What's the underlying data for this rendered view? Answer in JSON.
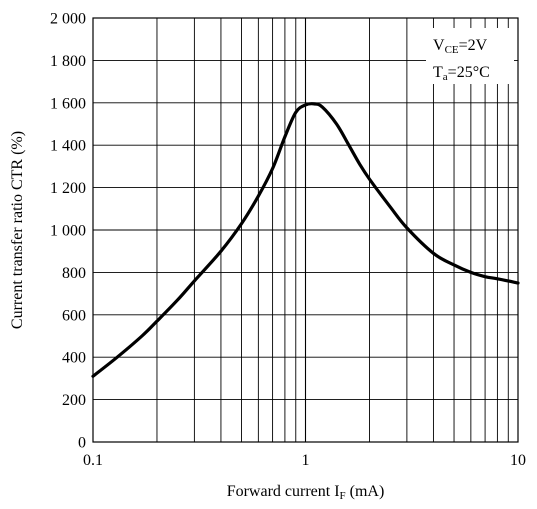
{
  "chart_data": {
    "type": "line",
    "title": "",
    "xlabel": "Forward current I",
    "xlabel_sub": "F",
    "xlabel_suffix": " (mA)",
    "ylabel": "Current transfer ratio CTR (%)",
    "xscale": "log",
    "xlim": [
      0.1,
      10
    ],
    "ylim": [
      0,
      2000
    ],
    "grid": true,
    "x_ticks": [
      0.1,
      1,
      10
    ],
    "x_tick_labels": [
      "0.1",
      "1",
      "10"
    ],
    "y_ticks": [
      0,
      200,
      400,
      600,
      800,
      1000,
      1200,
      1400,
      1600,
      1800,
      2000
    ],
    "y_tick_labels": [
      "0",
      "200",
      "400",
      "600",
      "800",
      "1 000",
      "1 200",
      "1 400",
      "1 600",
      "1 800",
      "2 000"
    ],
    "legend_position": "top-right",
    "conditions": [
      {
        "main": "V",
        "sub": "CE",
        "rest": "=2V"
      },
      {
        "main": "T",
        "sub": "a",
        "rest": "=25°C"
      }
    ],
    "series": [
      {
        "x": [
          0.1,
          0.13,
          0.17,
          0.2,
          0.25,
          0.3,
          0.4,
          0.5,
          0.6,
          0.7,
          0.8,
          0.9,
          1.0,
          1.1,
          1.2,
          1.4,
          1.6,
          1.8,
          2.0,
          2.5,
          3.0,
          4.0,
          5.0,
          6.0,
          7.0,
          8.0,
          10.0
        ],
        "y": [
          310,
          400,
          500,
          570,
          670,
          760,
          900,
          1030,
          1160,
          1290,
          1440,
          1555,
          1590,
          1595,
          1580,
          1500,
          1400,
          1310,
          1240,
          1110,
          1010,
          890,
          835,
          800,
          780,
          770,
          750
        ]
      }
    ]
  },
  "colors": {
    "line": "#000000",
    "grid": "#000000",
    "background": "#ffffff"
  }
}
